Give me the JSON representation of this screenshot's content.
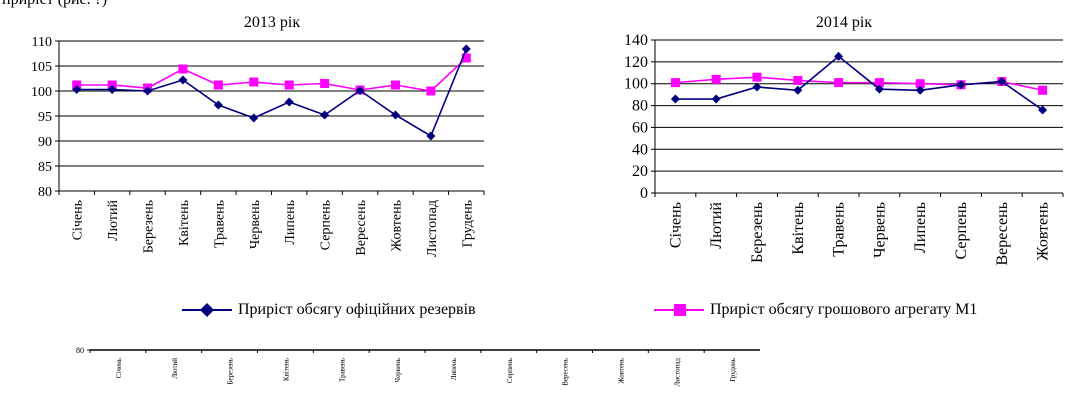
{
  "page": {
    "header_fragment": "приріст (рис. ?)"
  },
  "legend": {
    "reserves_label": "Приріст обсягу офіційних резервів",
    "m1_label": "Приріст обсягу грошового агрегату М1",
    "reserves_color": "#000080",
    "m1_color": "#ff00ff"
  },
  "chart_data": [
    {
      "type": "line",
      "title": "2013 рік",
      "categories": [
        "Січень",
        "Лютий",
        "Березень",
        "Квітень",
        "Травень",
        "Червень",
        "Липень",
        "Серпень",
        "Вересень",
        "Жовтень",
        "Листопад",
        "Грудень"
      ],
      "ylim": [
        80,
        110
      ],
      "yticks": [
        80,
        85,
        90,
        95,
        100,
        105,
        110
      ],
      "grid": true,
      "series": [
        {
          "name": "Приріст обсягу офіційних резервів",
          "marker": "diamond",
          "color": "#000080",
          "values": [
            100.3,
            100.3,
            100.0,
            102.2,
            97.2,
            94.6,
            97.8,
            95.2,
            100.1,
            95.2,
            91.0,
            108.4
          ]
        },
        {
          "name": "Приріст обсягу грошового агрегату М1",
          "marker": "square",
          "color": "#ff00ff",
          "values": [
            101.2,
            101.2,
            100.6,
            104.4,
            101.2,
            101.8,
            101.2,
            101.5,
            100.2,
            101.2,
            100.0,
            106.6
          ]
        }
      ]
    },
    {
      "type": "line",
      "title": "2014 рік",
      "categories": [
        "Січень",
        "Лютий",
        "Березень",
        "Квітень",
        "Травень",
        "Червень",
        "Липень",
        "Серпень",
        "Вересень",
        "Жовтень"
      ],
      "ylim": [
        0,
        140
      ],
      "yticks": [
        0,
        20,
        40,
        60,
        80,
        100,
        120,
        140
      ],
      "grid": true,
      "series": [
        {
          "name": "Приріст обсягу офіційних резервів",
          "marker": "diamond",
          "color": "#000080",
          "values": [
            86,
            86,
            97,
            94,
            125,
            95,
            94,
            99,
            102,
            76
          ]
        },
        {
          "name": "Приріст обсягу грошового агрегату М1",
          "marker": "square",
          "color": "#ff00ff",
          "values": [
            101,
            104,
            106,
            103,
            101,
            101,
            100,
            99,
            102,
            94
          ]
        }
      ]
    },
    {
      "type": "line",
      "title": "",
      "categories": [
        "Січень",
        "Лютий",
        "Березень",
        "Квітень",
        "Травень",
        "Червень",
        "Липень",
        "Серпень",
        "Вересень",
        "Жовтень",
        "Листопад",
        "Грудень"
      ],
      "yticks": [
        80
      ],
      "series": []
    }
  ]
}
